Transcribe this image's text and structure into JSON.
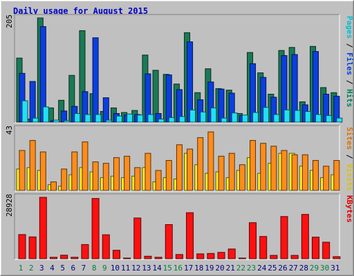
{
  "chart_data": {
    "type": "bar",
    "title": "Daily usage for August 2015",
    "categories": [
      "1",
      "2",
      "3",
      "4",
      "5",
      "6",
      "7",
      "8",
      "9",
      "10",
      "11",
      "12",
      "13",
      "14",
      "15",
      "16",
      "17",
      "18",
      "19",
      "20",
      "21",
      "22",
      "23",
      "24",
      "25",
      "26",
      "27",
      "28",
      "29",
      "30",
      "31"
    ],
    "weekend_days": [
      "1",
      "2",
      "8",
      "9",
      "15",
      "16",
      "22",
      "23",
      "29",
      "30"
    ],
    "panels": [
      {
        "id": "top",
        "ymax_label": "205",
        "ylim": [
          0,
          205
        ],
        "legend": [
          {
            "name": "Pages",
            "color": "#00c0d0"
          },
          {
            "name": "Files",
            "color": "#0040e0"
          },
          {
            "name": "Hits",
            "color": "#008060"
          }
        ],
        "legend_separator": " / ",
        "series": [
          {
            "name": "Hits",
            "color": "#1a7a55",
            "values": [
              126,
              6,
              205,
              28,
              43,
              92,
              180,
              56,
              21,
              28,
              19,
              23,
              132,
              102,
              94,
              75,
              176,
              58,
              105,
              66,
              63,
              17,
              137,
              97,
              55,
              141,
              147,
              40,
              149,
              68,
              58
            ]
          },
          {
            "name": "Files",
            "color": "#0a3fe0",
            "values": [
              96,
              80,
              188,
              3,
              22,
              31,
              60,
              166,
              48,
              17,
              14,
              15,
              95,
              17,
              93,
              64,
              158,
              44,
              79,
              65,
              57,
              13,
              115,
              88,
              49,
              131,
              133,
              34,
              139,
              55,
              51
            ]
          },
          {
            "name": "Pages",
            "color": "#22e0f6",
            "values": [
              42,
              8,
              30,
              4,
              3,
              17,
              15,
              15,
              4,
              12,
              16,
              14,
              15,
              6,
              9,
              11,
              24,
              20,
              28,
              8,
              18,
              14,
              19,
              29,
              15,
              24,
              23,
              21,
              15,
              13,
              8
            ]
          }
        ]
      },
      {
        "id": "mid",
        "ymax_label": "43",
        "ylim": [
          0,
          43
        ],
        "legend": [
          {
            "name": "Sites",
            "color": "#e07000"
          },
          {
            "name": "Visits",
            "color": "#e0c000"
          }
        ],
        "legend_separator": " / ",
        "series": [
          {
            "name": "Visits",
            "color": "#ffee22",
            "values": [
              15,
              16,
              14,
              4,
              3,
              11,
              16,
              13,
              9,
              10,
              9,
              10,
              16,
              6,
              9,
              8,
              26,
              18,
              12,
              13,
              9,
              14,
              23,
              12,
              19,
              26,
              26,
              17,
              14,
              9,
              11
            ]
          },
          {
            "name": "Sites",
            "color": "#ff8c1a",
            "values": [
              28,
              35,
              27,
              6,
              15,
              27,
              34,
              20,
              19,
              23,
              24,
              16,
              26,
              14,
              21,
              32,
              29,
              37,
              41,
              24,
              26,
              18,
              35,
              33,
              31,
              28,
              25,
              25,
              21,
              17,
              21
            ]
          }
        ]
      },
      {
        "id": "bot",
        "ymax_label": "28928",
        "ylim": [
          0,
          28928
        ],
        "legend": [
          {
            "name": "KBytes",
            "color": "#e00000"
          }
        ],
        "legend_separator": "",
        "series": [
          {
            "name": "KBytes",
            "color": "#ff1010",
            "values": [
              11400,
              10300,
              28928,
              700,
              1700,
              700,
              6700,
              28400,
              11300,
              4000,
              300,
              19200,
              1200,
              700,
              16100,
              2000,
              21700,
              2300,
              2500,
              3000,
              4600,
              200,
              17000,
              10500,
              1600,
              19900,
              1600,
              20900,
              10200,
              7800,
              1000
            ]
          }
        ]
      }
    ]
  }
}
